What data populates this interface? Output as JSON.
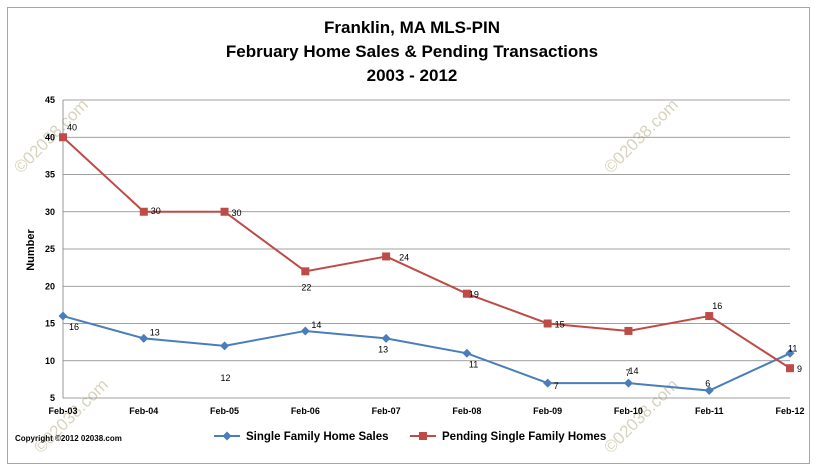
{
  "chart_data": {
    "type": "line",
    "title_lines": [
      "Franklin, MA  MLS-PIN",
      "February Home Sales & Pending Transactions",
      "2003 - 2012"
    ],
    "xlabel": "",
    "ylabel": "Number",
    "ylim": [
      5,
      45
    ],
    "yticks": [
      5,
      10,
      15,
      20,
      25,
      30,
      35,
      40,
      45
    ],
    "categories": [
      "Feb-03",
      "Feb-04",
      "Feb-05",
      "Feb-06",
      "Feb-07",
      "Feb-08",
      "Feb-09",
      "Feb-10",
      "Feb-11",
      "Feb-12"
    ],
    "grid": true,
    "legend_position": "bottom",
    "series": [
      {
        "name": "Single Family Home Sales",
        "color": "#4a7ebb",
        "marker": "diamond",
        "values": [
          16,
          13,
          12,
          14,
          13,
          11,
          7,
          7,
          6,
          11
        ]
      },
      {
        "name": "Pending Single Family Homes",
        "color": "#be4b48",
        "marker": "square",
        "values": [
          40,
          30,
          30,
          22,
          24,
          19,
          15,
          14,
          16,
          9
        ]
      }
    ],
    "copyright": "Copyright  ©2012 02038.com",
    "watermark": "©02038.com"
  }
}
